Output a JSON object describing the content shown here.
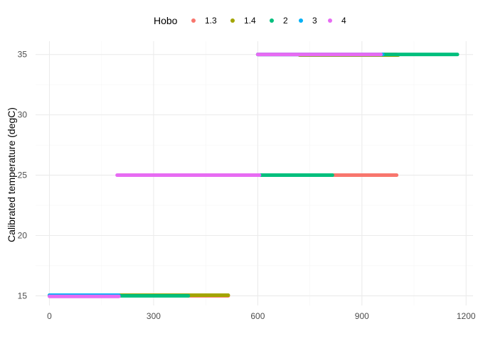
{
  "chart_data": {
    "type": "scatter",
    "title": "",
    "xlabel": "",
    "ylabel": "Calibrated temperature (degC)",
    "xlim": [
      -40,
      1220
    ],
    "ylim": [
      14.2,
      36.1
    ],
    "x_ticks": [
      0,
      300,
      600,
      900,
      1200
    ],
    "x_tick_labels": [
      "0",
      "300",
      "600",
      "900",
      "1200"
    ],
    "y_ticks": [
      15,
      20,
      25,
      30,
      35
    ],
    "y_tick_labels": [
      "15",
      "20",
      "25",
      "30",
      "35"
    ],
    "grid": true,
    "legend": {
      "title": "Hobo",
      "position": "top",
      "entries": [
        "1.3",
        "1.4",
        "2",
        "3",
        "4"
      ]
    },
    "series": [
      {
        "name": "1.3",
        "color": "#F8766D",
        "segments": [
          {
            "x_start": 400,
            "x_end": 515,
            "y": 15.0
          },
          {
            "x_start": 400,
            "x_end": 1000,
            "y": 25.0
          },
          {
            "x_start": 600,
            "x_end": 1000,
            "y": 35.0
          }
        ]
      },
      {
        "name": "1.4",
        "color": "#A3A500",
        "segments": [
          {
            "x_start": 0,
            "x_end": 515,
            "y": 15.05
          },
          {
            "x_start": 720,
            "x_end": 1005,
            "y": 34.95
          }
        ]
      },
      {
        "name": "2",
        "color": "#00BF7D",
        "segments": [
          {
            "x_start": 0,
            "x_end": 400,
            "y": 15.0
          },
          {
            "x_start": 200,
            "x_end": 815,
            "y": 25.0
          },
          {
            "x_start": 600,
            "x_end": 1175,
            "y": 35.0
          }
        ]
      },
      {
        "name": "3",
        "color": "#00B0F6",
        "segments": [
          {
            "x_start": 0,
            "x_end": 200,
            "y": 15.05
          },
          {
            "x_start": 200,
            "x_end": 605,
            "y": 25.0
          },
          {
            "x_start": 600,
            "x_end": 960,
            "y": 35.0
          }
        ]
      },
      {
        "name": "4",
        "color": "#E76BF3",
        "segments": [
          {
            "x_start": 0,
            "x_end": 200,
            "y": 14.95
          },
          {
            "x_start": 195,
            "x_end": 605,
            "y": 25.0
          },
          {
            "x_start": 600,
            "x_end": 955,
            "y": 35.0
          }
        ]
      }
    ]
  }
}
